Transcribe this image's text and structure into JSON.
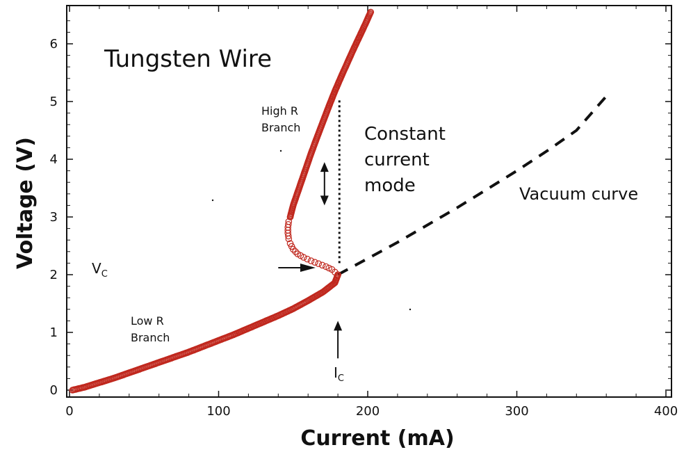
{
  "chart_data": {
    "type": "scatter",
    "title": "Tungsten Wire",
    "xlabel": "Current (mA)",
    "ylabel": "Voltage (V)",
    "xlim": [
      0,
      400
    ],
    "ylim": [
      0,
      6.5
    ],
    "x_ticks": [
      0,
      100,
      200,
      300,
      400
    ],
    "y_ticks": [
      0,
      1,
      2,
      3,
      4,
      5,
      6
    ],
    "grid": false,
    "colors": {
      "data": "#c0281e",
      "axis": "#111111"
    },
    "series": [
      {
        "style": "open-circle markers",
        "low_r_branch": {
          "x": [
            2,
            10,
            20,
            30,
            40,
            50,
            60,
            70,
            80,
            90,
            100,
            110,
            120,
            130,
            140,
            150,
            160,
            170,
            178,
            180
          ],
          "y": [
            0.0,
            0.05,
            0.13,
            0.21,
            0.3,
            0.39,
            0.48,
            0.57,
            0.66,
            0.76,
            0.86,
            0.96,
            1.07,
            1.18,
            1.29,
            1.41,
            1.55,
            1.7,
            1.86,
            2.0
          ]
        },
        "transition": {
          "x": [
            180,
            176,
            172,
            167,
            162,
            157,
            153,
            150,
            148,
            147,
            146.5,
            146.5,
            147,
            148
          ],
          "y": [
            2.0,
            2.09,
            2.14,
            2.19,
            2.24,
            2.3,
            2.36,
            2.44,
            2.54,
            2.62,
            2.72,
            2.82,
            2.92,
            3.0
          ]
        },
        "high_r_branch": {
          "x": [
            148,
            150,
            154,
            158,
            162,
            166,
            170,
            174,
            178,
            182,
            186,
            190,
            194,
            198,
            202
          ],
          "y": [
            3.0,
            3.2,
            3.5,
            3.8,
            4.1,
            4.38,
            4.65,
            4.92,
            5.18,
            5.42,
            5.65,
            5.88,
            6.1,
            6.32,
            6.55
          ]
        }
      },
      {
        "name": "Vacuum curve",
        "style": "dashed line",
        "x": [
          180,
          200,
          220,
          240,
          260,
          280,
          300,
          320,
          340,
          362
        ],
        "y": [
          2.0,
          2.28,
          2.56,
          2.86,
          3.16,
          3.48,
          3.8,
          4.14,
          4.5,
          5.15
        ]
      }
    ],
    "annotations": {
      "high_r": [
        "High R",
        "Branch"
      ],
      "low_r": [
        "Low R",
        "Branch"
      ],
      "constant_current": [
        "Constant",
        "current",
        "mode"
      ],
      "vacuum_curve": "Vacuum curve",
      "vc": {
        "main": "V",
        "sub": "C"
      },
      "ic": {
        "main": "I",
        "sub": "C"
      }
    },
    "constant_current_line": {
      "x": 181,
      "y_from": 2.2,
      "y_to": 5.05
    },
    "double_arrow": {
      "x": 171,
      "y_from": 3.2,
      "y_to": 3.95
    },
    "vc_arrow": {
      "x_from": 165,
      "x_to": 140,
      "y": 2.12
    },
    "ic_arrow": {
      "x": 180,
      "y_from": 0.55,
      "y_to": 1.2
    }
  }
}
